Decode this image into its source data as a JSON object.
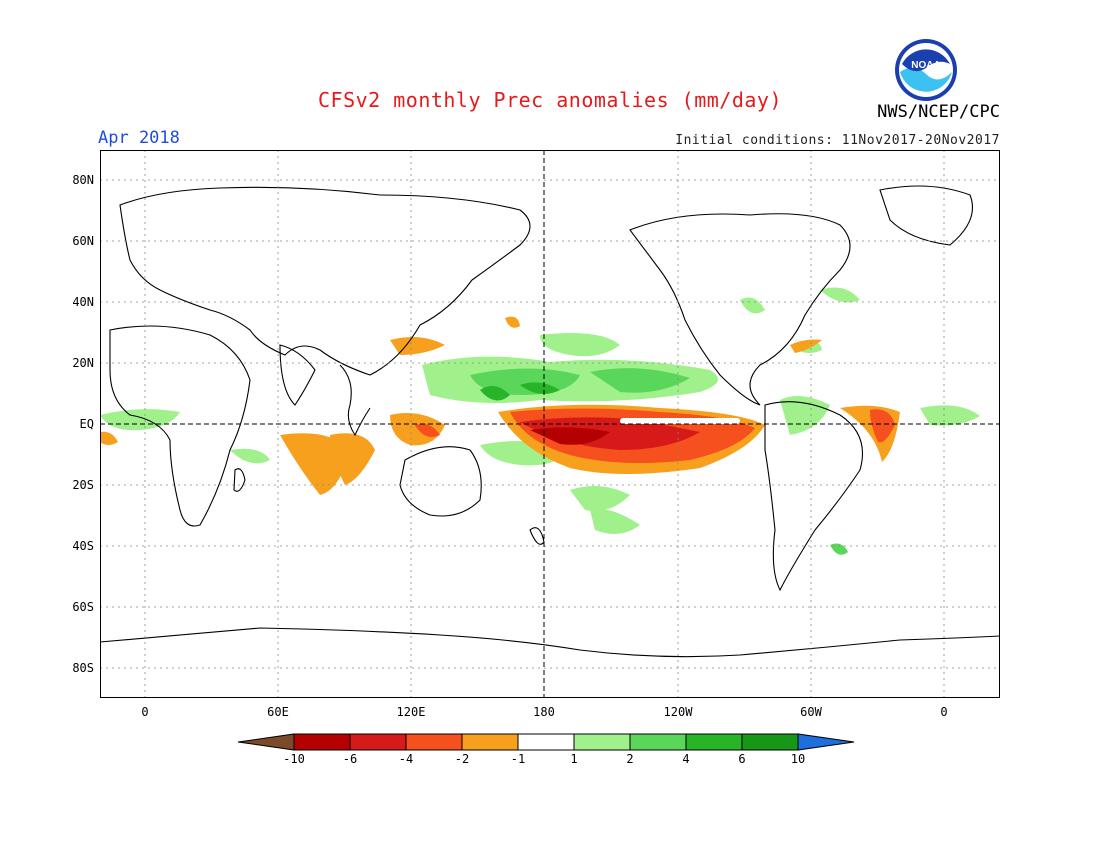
{
  "title": "CFSv2 monthly Prec anomalies (mm/day)",
  "month": "Apr 2018",
  "agency": "NWS/NCEP/CPC",
  "initial_conditions": "Initial conditions: 11Nov2017-20Nov2017",
  "logo_text": "NOAA",
  "lat_labels": [
    "80N",
    "60N",
    "40N",
    "20N",
    "EQ",
    "20S",
    "40S",
    "60S",
    "80S"
  ],
  "lon_labels": [
    "0",
    "60E",
    "120E",
    "180",
    "120W",
    "60W",
    "0"
  ],
  "colorbar": {
    "ticks": [
      "-10",
      "-6",
      "-4",
      "-2",
      "-1",
      "1",
      "2",
      "4",
      "6",
      "10"
    ],
    "colors": [
      "#7a4a2a",
      "#b40000",
      "#d61a1a",
      "#f5501e",
      "#f7a01e",
      "#ffffff",
      "#a0f08c",
      "#5ad75a",
      "#28b428",
      "#189618",
      "#1e6edc"
    ]
  }
}
